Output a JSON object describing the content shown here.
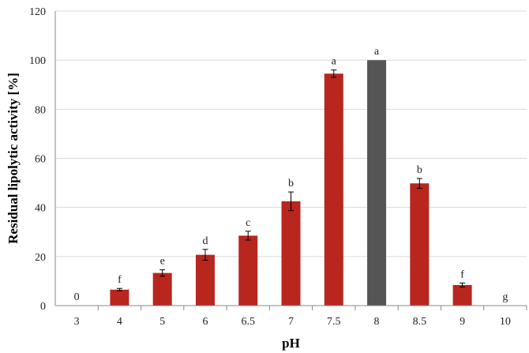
{
  "chart_data": {
    "type": "bar",
    "title": "",
    "xlabel": "pH",
    "ylabel": "Residual lipolytic activity [%]",
    "ylim": [
      0,
      120
    ],
    "y_ticks": [
      0,
      20,
      40,
      60,
      80,
      100,
      120
    ],
    "grid": "horizontal",
    "legend": "none",
    "categories": [
      "3",
      "4",
      "5",
      "6",
      "6.5",
      "7",
      "7.5",
      "8",
      "8.5",
      "9",
      "10"
    ],
    "values": [
      0,
      6.5,
      13.3,
      20.7,
      28.5,
      42.5,
      94.5,
      100,
      49.8,
      8.4,
      0
    ],
    "errors": [
      0,
      0.5,
      1.3,
      2.2,
      1.8,
      3.8,
      1.5,
      0,
      2.0,
      0.8,
      0
    ],
    "annotations": [
      "0",
      "f",
      "e",
      "d",
      "c",
      "b",
      "a",
      "a",
      "b",
      "f",
      "g"
    ],
    "colors": [
      "#b8261e",
      "#b8261e",
      "#b8261e",
      "#b8261e",
      "#b8261e",
      "#b8261e",
      "#b8261e",
      "#555555",
      "#b8261e",
      "#b8261e",
      "#b8261e"
    ],
    "gridline_color": "#d9d9d9",
    "axis_color": "#888888"
  }
}
